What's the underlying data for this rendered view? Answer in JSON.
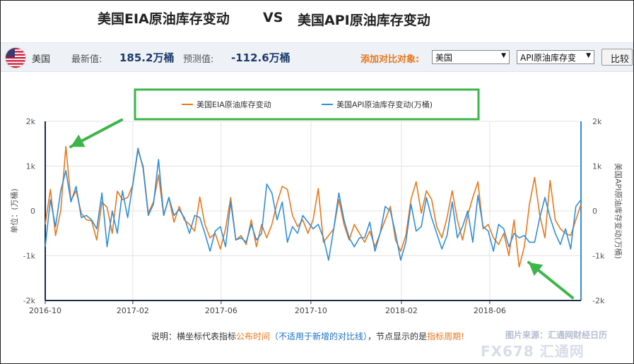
{
  "header": {
    "title_left": "美国EIA原油库存变动",
    "vs": "VS",
    "title_right": "美国API原油库存变动"
  },
  "toolbar": {
    "country": "美国",
    "latest_label": "最新值:",
    "latest_value": "185.2万桶",
    "forecast_label": "预测值:",
    "forecast_value": "-112.6万桶",
    "add_compare_label": "添加对比对象:",
    "select_country": "美国",
    "select_indicator": "API原油库存变",
    "compare_button": "比较"
  },
  "footnote": {
    "prefix": "说明：横坐标代表指标",
    "em1": "公布时间",
    "mid": "（不适用于新增的对比线）",
    "after": "，节点显示的是",
    "em2": "指标周期",
    "end": "!"
  },
  "source": "图片来源：汇通网财经日历",
  "watermark": "FX678 汇通网",
  "colors": {
    "eia": "#e7781b",
    "api": "#2f8fd8",
    "legend_box": "#3cb54a",
    "arrow": "#3cb54a",
    "axis_right": "#2f8fd8"
  },
  "chart_data": {
    "type": "line",
    "title": "",
    "xlabel": "",
    "ylabel_left": "单位：(万桶)",
    "ylabel_right": "美国API原油库存变动(万桶)",
    "ylim": [
      -2000,
      2000
    ],
    "yticks": [
      "2k",
      "1k",
      "0",
      "-1k",
      "-2k"
    ],
    "yticks_right": [
      "2k",
      "1k",
      "0",
      "-1k",
      "-2k"
    ],
    "xticks": [
      "2016-10",
      "2017-02",
      "2017-06",
      "2017-10",
      "2018-02",
      "2018-06"
    ],
    "grid": true,
    "legend": "top-center",
    "x_start": "2016-10-05",
    "x_step_days": 7,
    "series": [
      {
        "name": "美国EIA原油库存变动",
        "color": "#e7781b",
        "values": [
          -300,
          480,
          -550,
          0,
          1440,
          230,
          450,
          -50,
          -200,
          -220,
          -650,
          200,
          80,
          -500,
          440,
          250,
          300,
          580,
          1350,
          1000,
          -50,
          200,
          800,
          -100,
          300,
          -250,
          100,
          -200,
          -300,
          -450,
          310,
          -300,
          -600,
          -500,
          -850,
          -400,
          300,
          -650,
          -550,
          -750,
          -200,
          -800,
          -300,
          -600,
          -300,
          180,
          550,
          480,
          -100,
          -350,
          -200,
          -500,
          -200,
          500,
          -700,
          -550,
          -400,
          250,
          -300,
          -650,
          -300,
          -500,
          -700,
          -450,
          -800,
          -500,
          -200,
          100,
          -650,
          -900,
          -550,
          260,
          650,
          -50,
          450,
          260,
          -350,
          -600,
          -150,
          450,
          -200,
          -650,
          -100,
          300,
          650,
          -400,
          -300,
          -600,
          -750,
          -500,
          -1000,
          -200,
          -1250,
          -800,
          150,
          750,
          -100,
          -600,
          680,
          -200,
          -400,
          -500,
          -550,
          -200,
          150
        ]
      },
      {
        "name": "美国API原油库存变动(万桶)",
        "color": "#2f8fd8",
        "values": [
          -800,
          250,
          -350,
          450,
          900,
          200,
          550,
          -150,
          -100,
          -200,
          -400,
          400,
          -800,
          0,
          -500,
          450,
          -150,
          600,
          1400,
          950,
          -100,
          150,
          1150,
          -100,
          300,
          -100,
          30,
          -150,
          -500,
          -100,
          -150,
          -500,
          -900,
          -450,
          -350,
          -800,
          200,
          -650,
          -600,
          -700,
          -300,
          -650,
          -500,
          600,
          400,
          -200,
          200,
          -700,
          -350,
          -500,
          -100,
          -250,
          -400,
          -300,
          -600,
          -1100,
          -400,
          400,
          -200,
          -600,
          -800,
          -600,
          -600,
          -250,
          -900,
          -500,
          100,
          0,
          -500,
          -1100,
          -700,
          150,
          -450,
          -350,
          300,
          -150,
          -500,
          -850,
          -550,
          200,
          -600,
          -350,
          0,
          -700,
          350,
          -350,
          -450,
          -900,
          -300,
          -400,
          -800,
          -500,
          -600,
          -550,
          -700,
          -700,
          -150,
          300,
          -150,
          -500,
          -750,
          -400,
          -850,
          100,
          250
        ]
      }
    ],
    "annotations": [
      "arrow-to-peak-2016-11",
      "arrow-to-trough-2018-07"
    ]
  }
}
